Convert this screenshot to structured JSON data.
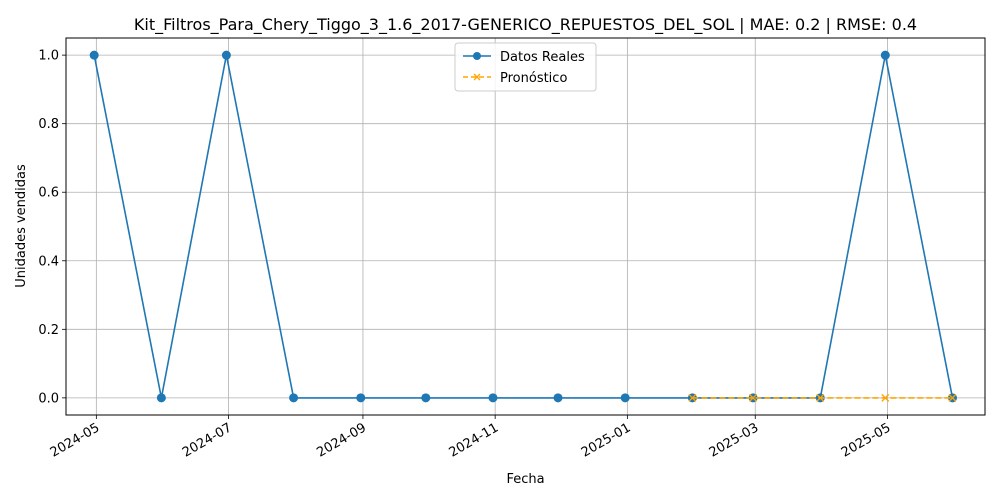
{
  "chart_data": {
    "type": "line",
    "title": "Kit_Filtros_Para_Chery_Tiggo_3_1.6_2017-GENERICO_REPUESTOS_DEL_SOL | MAE: 0.2 | RMSE: 0.4",
    "xlabel": "Fecha",
    "ylabel": "Unidades vendidas",
    "ylim": [
      -0.05,
      1.05
    ],
    "xlim": [
      "2024-04-17",
      "2025-06-15"
    ],
    "grid": true,
    "legend_position": "top-center",
    "x_ticks": [
      "2024-05",
      "2024-07",
      "2024-09",
      "2024-11",
      "2025-01",
      "2025-03",
      "2025-05"
    ],
    "y_ticks": [
      "0.0",
      "0.2",
      "0.4",
      "0.6",
      "0.8",
      "1.0"
    ],
    "series": [
      {
        "name": "Datos Reales",
        "color": "#1f77b4",
        "style": "solid",
        "marker": "circle",
        "x": [
          "2024-04-30",
          "2024-05-31",
          "2024-06-30",
          "2024-07-31",
          "2024-08-31",
          "2024-09-30",
          "2024-10-31",
          "2024-11-30",
          "2024-12-31",
          "2025-01-31",
          "2025-02-28",
          "2025-03-31",
          "2025-04-30",
          "2025-05-31"
        ],
        "values": [
          1,
          0,
          1,
          0,
          0,
          0,
          0,
          0,
          0,
          0,
          0,
          0,
          1,
          0
        ]
      },
      {
        "name": "Pronóstico",
        "color": "#ffa500",
        "style": "dashed",
        "marker": "x",
        "x": [
          "2025-01-31",
          "2025-02-28",
          "2025-03-31",
          "2025-04-30",
          "2025-05-31"
        ],
        "values": [
          0,
          0,
          0,
          0,
          0
        ]
      }
    ]
  }
}
